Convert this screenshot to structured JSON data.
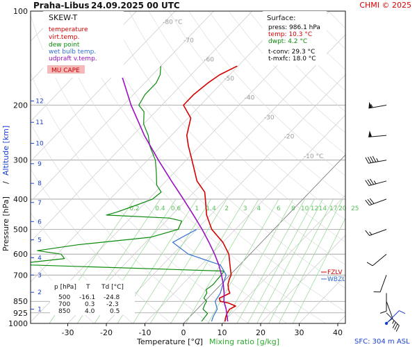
{
  "header": {
    "station": "Praha-Libus",
    "datetime": "24.09.2025 00 UTC",
    "credit": "CHMI © 2025",
    "sfc": "SFC: 304 m ASL"
  },
  "legend": {
    "title": "SKEW-T",
    "items": [
      {
        "label": "temperature",
        "color": "#d40000"
      },
      {
        "label": "virt.temp.",
        "color": "#d40000"
      },
      {
        "label": "dew point",
        "color": "#0a8a0a"
      },
      {
        "label": "wet bulb temp.",
        "color": "#3070d0"
      },
      {
        "label": "udpraft v.temp.",
        "color": "#9a10c0"
      }
    ],
    "mu_cape": "MU CAPE"
  },
  "surface_box": {
    "title": "Surface:",
    "lines": [
      {
        "text": "press: 986.1 hPa",
        "color": "#000000"
      },
      {
        "text": "temp: 10.3 °C",
        "color": "#d40000"
      },
      {
        "text": "dwpt: 4.2 °C",
        "color": "#0a8a0a"
      },
      {
        "text": "t-conv: 29.3 °C",
        "color": "#000000"
      },
      {
        "text": "t-mxfc: 18.0 °C",
        "color": "#000000"
      }
    ]
  },
  "levels_table": {
    "headers": [
      "p [hPa]",
      "T",
      "Td [°C]"
    ],
    "rows": [
      [
        "500",
        "-16.1",
        "-24.8"
      ],
      [
        "700",
        "0.3",
        "-2.3"
      ],
      [
        "850",
        "4.0",
        "0.5"
      ]
    ]
  },
  "markers": {
    "fzl": "FZLV",
    "wbzl": "WBZL"
  },
  "chart_data": {
    "type": "line",
    "title": "Praha-Libus 24.09.2025 00 UTC",
    "xlabel": "Temperature [°C]",
    "xlabel2": "Mixing ratio [g/kg]",
    "ylabel": "Pressure [hPa]",
    "ylabel2": "Altitude [km]",
    "xlim": [
      -35,
      45
    ],
    "ylim": [
      1000,
      100
    ],
    "y_scale": "log",
    "x_ticks": [
      -30,
      -20,
      -10,
      0,
      10,
      20,
      30,
      40
    ],
    "p_ticks": [
      100,
      200,
      300,
      400,
      500,
      600,
      700,
      850,
      925,
      1000
    ],
    "km_ticks": [
      {
        "km": 1,
        "p": 900
      },
      {
        "km": 2,
        "p": 795
      },
      {
        "km": 3,
        "p": 700
      },
      {
        "km": 4,
        "p": 616
      },
      {
        "km": 5,
        "p": 540
      },
      {
        "km": 6,
        "p": 472
      },
      {
        "km": 7,
        "p": 410
      },
      {
        "km": 8,
        "p": 356
      },
      {
        "km": 9,
        "p": 308
      },
      {
        "km": 10,
        "p": 265
      },
      {
        "km": 11,
        "p": 227
      },
      {
        "km": 12,
        "p": 194
      }
    ],
    "isotherm_labels": [
      {
        "t": "-80 °C"
      },
      {
        "t": "-70"
      },
      {
        "t": "-60"
      },
      {
        "t": "-50"
      },
      {
        "t": "-40"
      },
      {
        "t": "-30"
      },
      {
        "t": "-20"
      },
      {
        "t": "-10 °C"
      }
    ],
    "mixing_ratio_labels": [
      "0.2",
      "0.4",
      "0.6",
      "1",
      "1.4",
      "2",
      "3",
      "4",
      "6",
      "8",
      "10",
      "12",
      "14",
      "17",
      "20",
      "25"
    ],
    "series": [
      {
        "name": "temperature",
        "color": "#d40000",
        "points": [
          [
            986,
            10.3
          ],
          [
            960,
            9.5
          ],
          [
            930,
            8.8
          ],
          [
            900,
            8.4
          ],
          [
            880,
            9.2
          ],
          [
            860,
            6.5
          ],
          [
            850,
            4.0
          ],
          [
            830,
            3.0
          ],
          [
            800,
            4.5
          ],
          [
            780,
            3.3
          ],
          [
            750,
            1.8
          ],
          [
            720,
            0.8
          ],
          [
            700,
            0.3
          ],
          [
            650,
            -2.5
          ],
          [
            600,
            -5.5
          ],
          [
            550,
            -10.0
          ],
          [
            500,
            -16.1
          ],
          [
            450,
            -21.0
          ],
          [
            400,
            -25.3
          ],
          [
            380,
            -27.2
          ],
          [
            350,
            -32.0
          ],
          [
            300,
            -38.5
          ],
          [
            270,
            -43.0
          ],
          [
            250,
            -46.0
          ],
          [
            220,
            -49.3
          ],
          [
            200,
            -54.4
          ],
          [
            185,
            -54.4
          ],
          [
            170,
            -53.6
          ],
          [
            160,
            -52.6
          ],
          [
            150,
            -50.2
          ]
        ]
      },
      {
        "name": "dew point",
        "color": "#0a8a0a",
        "points": [
          [
            986,
            4.2
          ],
          [
            960,
            4.0
          ],
          [
            930,
            3.8
          ],
          [
            900,
            1.5
          ],
          [
            870,
            0.8
          ],
          [
            850,
            0.5
          ],
          [
            830,
            -1.0
          ],
          [
            800,
            -1.5
          ],
          [
            780,
            -2.5
          ],
          [
            750,
            -2.0
          ],
          [
            720,
            -2.2
          ],
          [
            700,
            -2.3
          ],
          [
            680,
            -2.5
          ],
          [
            650,
            -54.0
          ],
          [
            640,
            -56.0
          ],
          [
            620,
            -47.0
          ],
          [
            600,
            -49.0
          ],
          [
            585,
            -56.0
          ],
          [
            560,
            -47.0
          ],
          [
            530,
            -30.0
          ],
          [
            500,
            -24.8
          ],
          [
            470,
            -26.0
          ],
          [
            460,
            -30.0
          ],
          [
            450,
            -47.0
          ],
          [
            440,
            -45.0
          ],
          [
            420,
            -42.0
          ],
          [
            400,
            -39.0
          ],
          [
            380,
            -38.5
          ],
          [
            360,
            -41.5
          ],
          [
            330,
            -44.5
          ],
          [
            300,
            -48.0
          ],
          [
            270,
            -53.0
          ],
          [
            250,
            -56.0
          ],
          [
            230,
            -60.0
          ],
          [
            210,
            -63.0
          ],
          [
            200,
            -66.0
          ],
          [
            185,
            -67.0
          ],
          [
            170,
            -67.0
          ],
          [
            160,
            -68.0
          ],
          [
            150,
            -70.0
          ]
        ]
      },
      {
        "name": "wet bulb temp.",
        "color": "#3070d0",
        "points": [
          [
            986,
            6.8
          ],
          [
            950,
            6.0
          ],
          [
            900,
            5.2
          ],
          [
            850,
            2.7
          ],
          [
            800,
            2.0
          ],
          [
            750,
            0.5
          ],
          [
            700,
            -1.0
          ],
          [
            650,
            -5.0
          ],
          [
            600,
            -16.0
          ],
          [
            550,
            -23.0
          ],
          [
            500,
            -20.0
          ]
        ]
      },
      {
        "name": "udpraft v.temp.",
        "color": "#9a10c0",
        "points": [
          [
            986,
            11.0
          ],
          [
            900,
            7.5
          ],
          [
            850,
            5.0
          ],
          [
            800,
            3.0
          ],
          [
            750,
            0.6
          ],
          [
            700,
            -2.2
          ],
          [
            650,
            -5.4
          ],
          [
            600,
            -9.2
          ],
          [
            550,
            -13.6
          ],
          [
            500,
            -18.6
          ],
          [
            450,
            -24.4
          ],
          [
            400,
            -31.0
          ],
          [
            350,
            -38.6
          ],
          [
            300,
            -47.2
          ],
          [
            250,
            -57.0
          ],
          [
            200,
            -68.0
          ],
          [
            160,
            -78.0
          ]
        ]
      }
    ],
    "winds": [
      {
        "p": 200,
        "dir": 260,
        "kt": 55
      },
      {
        "p": 250,
        "dir": 265,
        "kt": 50
      },
      {
        "p": 300,
        "dir": 260,
        "kt": 45
      },
      {
        "p": 350,
        "dir": 255,
        "kt": 35
      },
      {
        "p": 400,
        "dir": 250,
        "kt": 30
      },
      {
        "p": 500,
        "dir": 250,
        "kt": 15
      },
      {
        "p": 600,
        "dir": 230,
        "kt": 10
      },
      {
        "p": 700,
        "dir": 200,
        "kt": 10
      },
      {
        "p": 800,
        "dir": 180,
        "kt": 10
      },
      {
        "p": 850,
        "dir": 160,
        "kt": 10
      },
      {
        "p": 925,
        "dir": 135,
        "kt": 35
      },
      {
        "p": 1000,
        "dir": 45,
        "kt": 10
      }
    ]
  }
}
